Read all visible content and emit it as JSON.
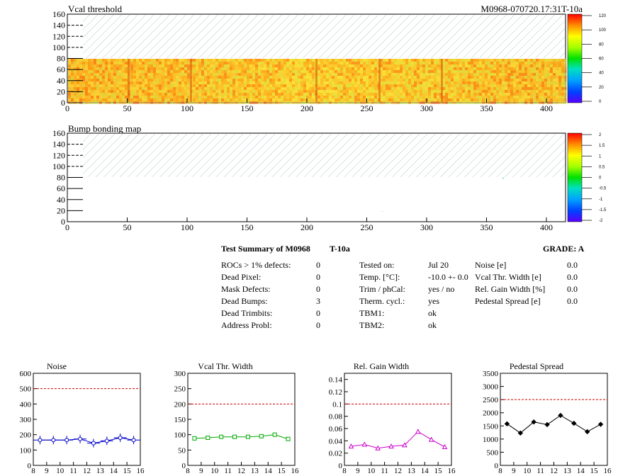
{
  "header": {
    "map_title": "Vcal threshold",
    "module_id": "M0968-070720.17:31T-10a",
    "bump_title": "Bump bonding map"
  },
  "maps": {
    "x_ticks": [
      "0",
      "50",
      "100",
      "150",
      "200",
      "250",
      "300",
      "350",
      "400"
    ],
    "y_ticks": [
      "0",
      "20",
      "40",
      "60",
      "80",
      "100",
      "120",
      "140",
      "160"
    ],
    "vcal_colorbar_ticks": [
      "0",
      "20",
      "40",
      "60",
      "80",
      "100",
      "120"
    ],
    "bump_colorbar_ticks": [
      "-2",
      "-1.5",
      "-1",
      "-0.5",
      "0",
      "0.5",
      "1",
      "1.5",
      "2"
    ]
  },
  "summary": {
    "title": "Test Summary of M0968",
    "temp_label": "T-10a",
    "grade": "GRADE:  A",
    "col1": [
      {
        "label": "ROCs > 1% defects:",
        "value": "0"
      },
      {
        "label": "Dead Pixel:",
        "value": "0"
      },
      {
        "label": "Mask Defects:",
        "value": "0"
      },
      {
        "label": "Dead Bumps:",
        "value": "3"
      },
      {
        "label": "Dead Trimbits:",
        "value": "0"
      },
      {
        "label": "Address Probl:",
        "value": "0"
      }
    ],
    "col2": [
      {
        "label": "Tested on:",
        "value": "Jul 20"
      },
      {
        "label": "Temp. [°C]:",
        "value": "-10.0 +- 0.0"
      },
      {
        "label": "Trim / phCal:",
        "value": "yes / no"
      },
      {
        "label": "Therm. cycl.:",
        "value": "yes"
      },
      {
        "label": "TBM1:",
        "value": "ok"
      },
      {
        "label": "TBM2:",
        "value": "ok"
      }
    ],
    "col3": [
      {
        "label": "Noise [e]",
        "value": "0.0"
      },
      {
        "label": "Vcal Thr. Width [e]",
        "value": "0.0"
      },
      {
        "label": "Rel. Gain Width [%]",
        "value": "0.0"
      },
      {
        "label": "Pedestal Spread [e]",
        "value": "0.0"
      }
    ]
  },
  "chart_data": [
    {
      "type": "line",
      "title": "Noise",
      "color": "#0000cc",
      "marker": "circle",
      "x": [
        8.5,
        9.5,
        10.5,
        11.5,
        12.5,
        13.5,
        14.5,
        15.5
      ],
      "values": [
        165,
        165,
        165,
        172,
        145,
        160,
        180,
        165
      ],
      "xlim": [
        8,
        16
      ],
      "ylim": [
        0,
        600
      ],
      "yticks": [
        "0",
        "100",
        "200",
        "300",
        "400",
        "500",
        "600"
      ],
      "xticks": [
        "8",
        "9",
        "10",
        "11",
        "12",
        "13",
        "14",
        "15",
        "16"
      ],
      "limit": 500
    },
    {
      "type": "line",
      "title": "Vcal Thr. Width",
      "color": "#00aa00",
      "marker": "square",
      "x": [
        8.5,
        9.5,
        10.5,
        11.5,
        12.5,
        13.5,
        14.5,
        15.5
      ],
      "values": [
        88,
        90,
        93,
        93,
        93,
        95,
        100,
        86
      ],
      "xlim": [
        8,
        16
      ],
      "ylim": [
        0,
        300
      ],
      "yticks": [
        "0",
        "50",
        "100",
        "150",
        "200",
        "250",
        "300"
      ],
      "xticks": [
        "8",
        "9",
        "10",
        "11",
        "12",
        "13",
        "14",
        "15",
        "16"
      ],
      "limit": 200
    },
    {
      "type": "line",
      "title": "Rel. Gain Width",
      "color": "#cc00cc",
      "marker": "triangle",
      "x": [
        8.5,
        9.5,
        10.5,
        11.5,
        12.5,
        13.5,
        14.5,
        15.5
      ],
      "values": [
        0.031,
        0.034,
        0.028,
        0.031,
        0.033,
        0.055,
        0.042,
        0.03
      ],
      "xlim": [
        8,
        16
      ],
      "ylim": [
        0,
        0.15
      ],
      "yticks": [
        "0",
        "0.02",
        "0.04",
        "0.06",
        "0.08",
        "0.1",
        "0.12",
        "0.14"
      ],
      "ytickvals": [
        0,
        0.02,
        0.04,
        0.06,
        0.08,
        0.1,
        0.12,
        0.14
      ],
      "xticks": [
        "8",
        "9",
        "10",
        "11",
        "12",
        "13",
        "14",
        "15",
        "16"
      ],
      "limit": 0.1
    },
    {
      "type": "line",
      "title": "Pedestal Spread",
      "color": "#000000",
      "marker": "diamond",
      "x": [
        8.5,
        9.5,
        10.5,
        11.5,
        12.5,
        13.5,
        14.5,
        15.5
      ],
      "values": [
        1580,
        1230,
        1650,
        1550,
        1900,
        1600,
        1280,
        1560
      ],
      "xlim": [
        8,
        16
      ],
      "ylim": [
        0,
        3500
      ],
      "yticks": [
        "0",
        "500",
        "1000",
        "1500",
        "2000",
        "2500",
        "3000",
        "3500"
      ],
      "xticks": [
        "8",
        "9",
        "10",
        "11",
        "12",
        "13",
        "14",
        "15",
        "16"
      ],
      "limit": 2500
    }
  ]
}
